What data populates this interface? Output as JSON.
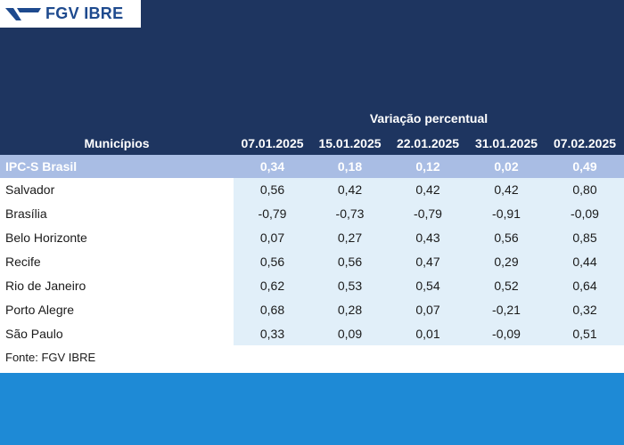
{
  "logo": {
    "text": "FGV IBRE",
    "color": "#1e4a8e"
  },
  "table": {
    "title": "Variação percentual",
    "row_header": "Municípios",
    "columns": [
      "07.01.2025",
      "15.01.2025",
      "22.01.2025",
      "31.01.2025",
      "07.02.2025"
    ],
    "highlight_row": {
      "label": "IPC-S Brasil",
      "values": [
        "0,34",
        "0,18",
        "0,12",
        "0,02",
        "0,49"
      ]
    },
    "rows": [
      {
        "label": "Salvador",
        "values": [
          "0,56",
          "0,42",
          "0,42",
          "0,42",
          "0,80"
        ]
      },
      {
        "label": "Brasília",
        "values": [
          "-0,79",
          "-0,73",
          "-0,79",
          "-0,91",
          "-0,09"
        ]
      },
      {
        "label": "Belo Horizonte",
        "values": [
          "0,07",
          "0,27",
          "0,43",
          "0,56",
          "0,85"
        ]
      },
      {
        "label": "Recife",
        "values": [
          "0,56",
          "0,56",
          "0,47",
          "0,29",
          "0,44"
        ]
      },
      {
        "label": "Rio de Janeiro",
        "values": [
          "0,62",
          "0,53",
          "0,54",
          "0,52",
          "0,64"
        ]
      },
      {
        "label": "Porto Alegre",
        "values": [
          "0,68",
          "0,28",
          "0,07",
          "-0,21",
          "0,32"
        ]
      },
      {
        "label": "São Paulo",
        "values": [
          "0,33",
          "0,09",
          "0,01",
          "-0,09",
          "0,51"
        ]
      }
    ],
    "source": "Fonte: FGV IBRE"
  },
  "colors": {
    "header_bg": "#1e3560",
    "highlight_bg": "#a9bde4",
    "data_bg": "#e1eff9",
    "footer_bg": "#1e8ad6"
  }
}
